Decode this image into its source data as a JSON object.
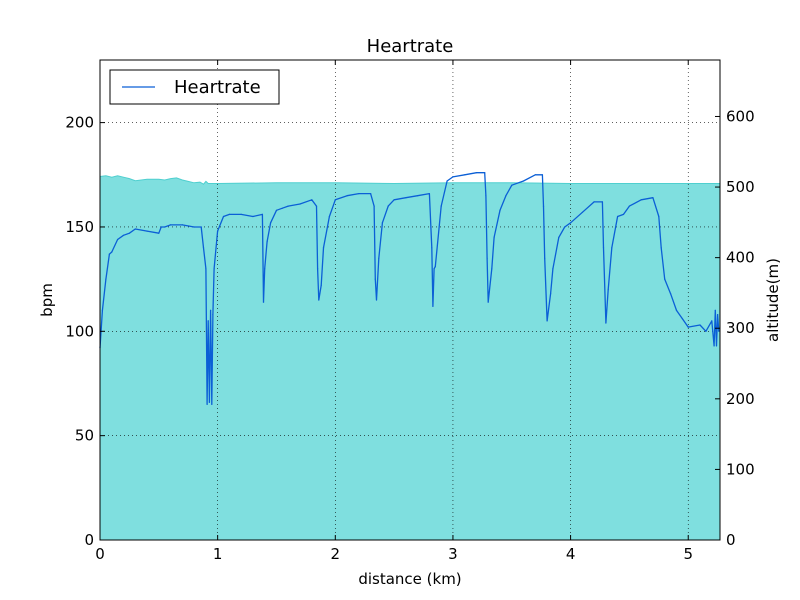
{
  "chart_data": {
    "type": "line",
    "title": "Heartrate",
    "xlabel": "distance (km)",
    "ylabel": "bpm",
    "y2label": "altitude(m)",
    "xlim": [
      0,
      5.27
    ],
    "ylim": [
      0,
      230
    ],
    "y2lim": [
      0,
      680
    ],
    "x_ticks": [
      0,
      1,
      2,
      3,
      4,
      5
    ],
    "y_ticks": [
      0,
      50,
      100,
      150,
      200
    ],
    "y2_ticks": [
      0,
      100,
      200,
      300,
      400,
      500,
      600
    ],
    "grid": true,
    "legend": {
      "position": "top-left",
      "entries": [
        "Heartrate"
      ]
    },
    "colors": {
      "heartrate_line": "#0b5fd6",
      "heartrate_high": "#1414e6",
      "altitude_fill": "#7fdfdf",
      "altitude_edge": "#4fcfcf"
    },
    "series": [
      {
        "name": "Heartrate",
        "axis": "left",
        "x": [
          0,
          0.02,
          0.05,
          0.08,
          0.1,
          0.15,
          0.2,
          0.25,
          0.3,
          0.4,
          0.5,
          0.52,
          0.55,
          0.6,
          0.7,
          0.8,
          0.86,
          0.88,
          0.9,
          0.91,
          0.92,
          0.93,
          0.94,
          0.95,
          0.96,
          0.97,
          1.0,
          1.05,
          1.1,
          1.2,
          1.3,
          1.38,
          1.39,
          1.4,
          1.42,
          1.45,
          1.5,
          1.55,
          1.6,
          1.7,
          1.8,
          1.84,
          1.85,
          1.86,
          1.88,
          1.9,
          1.95,
          2.0,
          2.1,
          2.2,
          2.3,
          2.33,
          2.34,
          2.35,
          2.37,
          2.4,
          2.45,
          2.5,
          2.6,
          2.7,
          2.8,
          2.82,
          2.83,
          2.84,
          2.85,
          2.9,
          2.95,
          3.0,
          3.1,
          3.2,
          3.27,
          3.28,
          3.29,
          3.3,
          3.33,
          3.35,
          3.4,
          3.45,
          3.5,
          3.6,
          3.7,
          3.76,
          3.77,
          3.78,
          3.8,
          3.83,
          3.85,
          3.9,
          3.95,
          4.0,
          4.1,
          4.2,
          4.27,
          4.28,
          4.3,
          4.32,
          4.35,
          4.4,
          4.45,
          4.5,
          4.6,
          4.7,
          4.75,
          4.77,
          4.8,
          4.85,
          4.9,
          4.95,
          5.0,
          5.1,
          5.15,
          5.2,
          5.22,
          5.23,
          5.24,
          5.25,
          5.26
        ],
        "y": [
          92,
          110,
          125,
          137,
          138,
          144,
          146,
          147,
          149,
          148,
          147,
          150,
          150,
          151,
          151,
          150,
          150,
          140,
          130,
          65,
          105,
          66,
          110,
          65,
          108,
          130,
          148,
          155,
          156,
          156,
          155,
          156,
          114,
          130,
          143,
          152,
          158,
          159,
          160,
          161,
          163,
          160,
          130,
          115,
          122,
          140,
          155,
          163,
          165,
          166,
          166,
          160,
          125,
          115,
          135,
          152,
          160,
          163,
          164,
          165,
          166,
          140,
          112,
          130,
          131,
          160,
          172,
          174,
          175,
          176,
          176,
          165,
          135,
          114,
          130,
          145,
          158,
          165,
          170,
          172,
          175,
          175,
          160,
          135,
          105,
          118,
          130,
          145,
          150,
          152,
          157,
          162,
          162,
          140,
          104,
          120,
          140,
          155,
          156,
          160,
          163,
          164,
          155,
          140,
          125,
          118,
          110,
          106,
          102,
          103,
          100,
          105,
          93,
          110,
          93,
          108,
          100
        ]
      },
      {
        "name": "altitude",
        "axis": "right",
        "x": [
          0,
          0.05,
          0.1,
          0.15,
          0.2,
          0.25,
          0.3,
          0.4,
          0.5,
          0.55,
          0.6,
          0.65,
          0.7,
          0.75,
          0.8,
          0.85,
          0.88,
          0.9,
          0.92,
          1.0,
          1.5,
          2.0,
          2.5,
          3.0,
          3.5,
          4.0,
          4.5,
          5.0,
          5.27
        ],
        "y": [
          515,
          516,
          514,
          516,
          514,
          512,
          509,
          511,
          511,
          510,
          512,
          513,
          510,
          508,
          506,
          507,
          504,
          508,
          505,
          505,
          506,
          506,
          505,
          506,
          506,
          505,
          505,
          505,
          505
        ]
      }
    ]
  }
}
